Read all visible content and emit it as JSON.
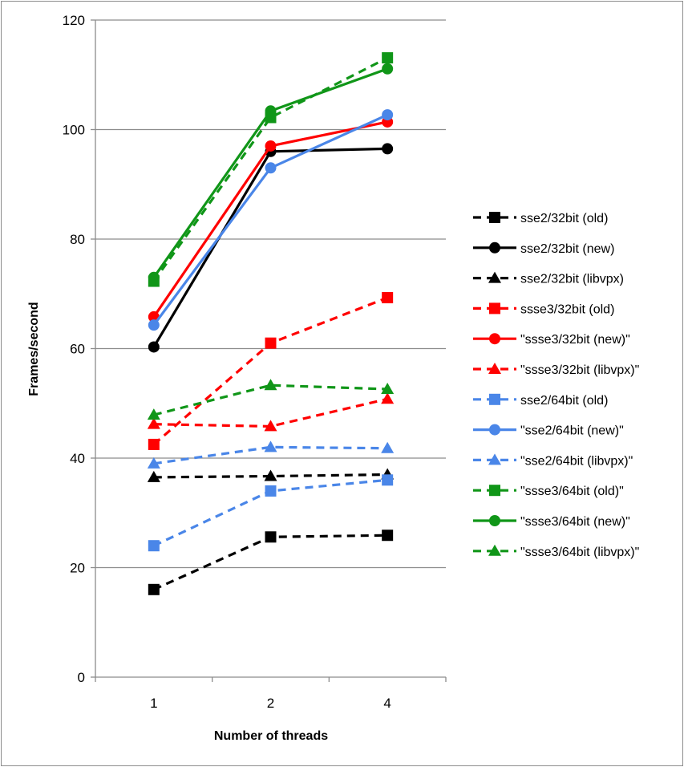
{
  "chart_data": {
    "type": "line",
    "title": "",
    "xlabel": "Number of threads",
    "ylabel": "Frames/second",
    "categories": [
      "1",
      "2",
      "4"
    ],
    "ylim": [
      0,
      120
    ],
    "yticks": [
      0,
      20,
      40,
      60,
      80,
      100,
      120
    ],
    "grid": true,
    "legend_position": "right",
    "series": [
      {
        "name": "sse2/32bit (old)",
        "values": [
          16,
          25.6,
          25.9
        ],
        "color": "#000000",
        "dashed": true,
        "marker": "square"
      },
      {
        "name": "sse2/32bit (new)",
        "values": [
          60.3,
          96,
          96.5
        ],
        "color": "#000000",
        "dashed": false,
        "marker": "circle"
      },
      {
        "name": "sse2/32bit (libvpx)",
        "values": [
          36.5,
          36.7,
          37
        ],
        "color": "#000000",
        "dashed": true,
        "marker": "triangle"
      },
      {
        "name": "ssse3/32bit (old)",
        "values": [
          42.5,
          61,
          69.3
        ],
        "color": "#ff0000",
        "dashed": true,
        "marker": "square"
      },
      {
        "name": "\"ssse3/32bit (new)\"",
        "values": [
          65.8,
          97,
          101.4
        ],
        "color": "#ff0000",
        "dashed": false,
        "marker": "circle"
      },
      {
        "name": "\"ssse3/32bit (libvpx)\"",
        "values": [
          46.2,
          45.8,
          50.8
        ],
        "color": "#ff0000",
        "dashed": true,
        "marker": "triangle"
      },
      {
        "name": "sse2/64bit (old)",
        "values": [
          24,
          34,
          36
        ],
        "color": "#4a86e8",
        "dashed": true,
        "marker": "square"
      },
      {
        "name": "\"sse2/64bit (new)\"",
        "values": [
          64.3,
          93,
          102.7
        ],
        "color": "#4a86e8",
        "dashed": false,
        "marker": "circle"
      },
      {
        "name": "\"sse2/64bit (libvpx)\"",
        "values": [
          39,
          42,
          41.8
        ],
        "color": "#4a86e8",
        "dashed": true,
        "marker": "triangle"
      },
      {
        "name": "\"ssse3/64bit (old)\"",
        "values": [
          72.3,
          102.2,
          113.1
        ],
        "color": "#109618",
        "dashed": true,
        "marker": "square"
      },
      {
        "name": "\"ssse3/64bit (new)\"",
        "values": [
          73,
          103.4,
          111.1
        ],
        "color": "#109618",
        "dashed": false,
        "marker": "circle"
      },
      {
        "name": "\"ssse3/64bit (libvpx)\"",
        "values": [
          47.9,
          53.3,
          52.6
        ],
        "color": "#109618",
        "dashed": true,
        "marker": "triangle"
      }
    ]
  }
}
